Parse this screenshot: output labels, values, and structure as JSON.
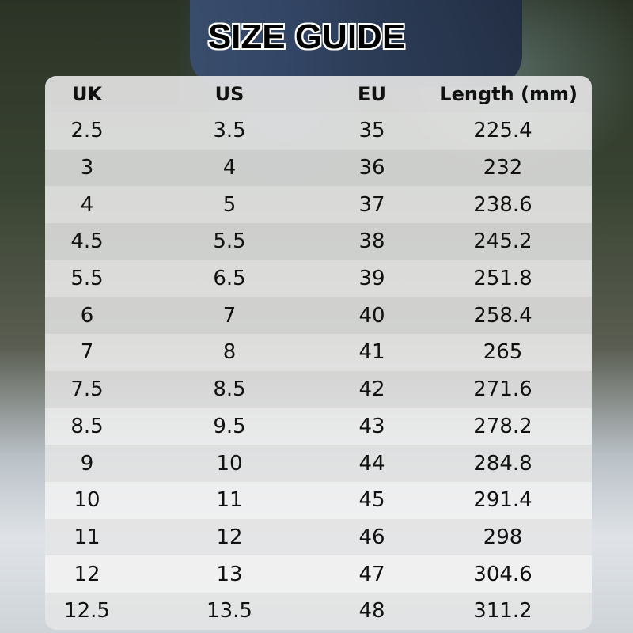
{
  "title": "SIZE GUIDE",
  "table": {
    "headers": [
      "UK",
      "US",
      "EU",
      "Length (mm)"
    ],
    "rows": [
      [
        "2.5",
        "3.5",
        "35",
        "225.4"
      ],
      [
        "3",
        "4",
        "36",
        "232"
      ],
      [
        "4",
        "5",
        "37",
        "238.6"
      ],
      [
        "4.5",
        "5.5",
        "38",
        "245.2"
      ],
      [
        "5.5",
        "6.5",
        "39",
        "251.8"
      ],
      [
        "6",
        "7",
        "40",
        "258.4"
      ],
      [
        "7",
        "8",
        "41",
        "265"
      ],
      [
        "7.5",
        "8.5",
        "42",
        "271.6"
      ],
      [
        "8.5",
        "9.5",
        "43",
        "278.2"
      ],
      [
        "9",
        "10",
        "44",
        "284.8"
      ],
      [
        "10",
        "11",
        "45",
        "291.4"
      ],
      [
        "11",
        "12",
        "46",
        "298"
      ],
      [
        "12",
        "13",
        "47",
        "304.6"
      ],
      [
        "12.5",
        "13.5",
        "48",
        "311.2"
      ]
    ]
  }
}
